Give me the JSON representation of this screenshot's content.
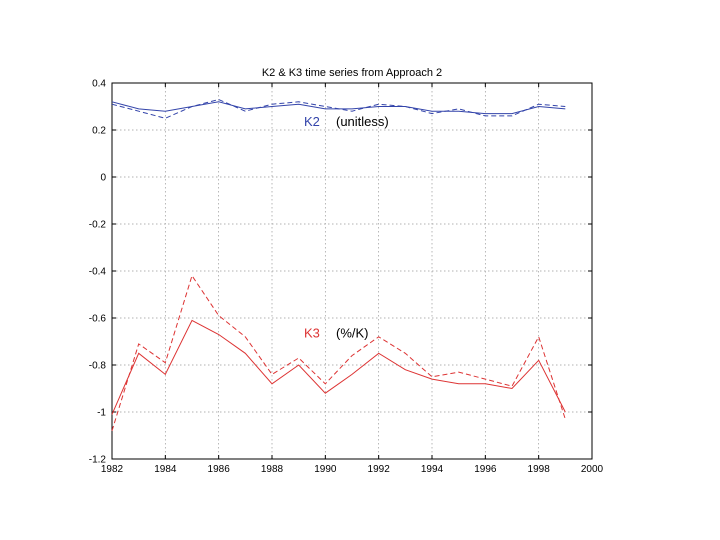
{
  "chart_data": {
    "type": "line",
    "title": "K2 & K3 time series from Approach 2",
    "xlabel": "",
    "ylabel": "",
    "xlim": [
      1982,
      2000
    ],
    "ylim": [
      -1.2,
      0.4
    ],
    "grid": true,
    "x_ticks": [
      1982,
      1984,
      1986,
      1988,
      1990,
      1992,
      1994,
      1996,
      1998,
      2000
    ],
    "y_ticks": [
      0.4,
      0.2,
      0,
      -0.2,
      -0.4,
      -0.6,
      -0.8,
      -1,
      -1.2
    ],
    "x_tick_labels": [
      "1982",
      "1984",
      "1986",
      "1988",
      "1990",
      "1992",
      "1994",
      "1996",
      "1998",
      "2000"
    ],
    "y_tick_labels": [
      "0.4",
      "0.2",
      "0",
      "-0.2",
      "-0.4",
      "-0.6",
      "-0.8",
      "-1",
      "-1.2"
    ],
    "x": [
      1982,
      1983,
      1984,
      1985,
      1986,
      1987,
      1988,
      1989,
      1990,
      1991,
      1992,
      1993,
      1994,
      1995,
      1996,
      1997,
      1998,
      1999
    ],
    "series": [
      {
        "color": "#3344aa",
        "dash": "solid",
        "values": [
          0.32,
          0.29,
          0.28,
          0.3,
          0.32,
          0.29,
          0.3,
          0.31,
          0.29,
          0.29,
          0.3,
          0.3,
          0.28,
          0.28,
          0.27,
          0.27,
          0.3,
          0.29
        ]
      },
      {
        "color": "#3344aa",
        "dash": "dashed",
        "values": [
          0.31,
          0.28,
          0.25,
          0.3,
          0.33,
          0.28,
          0.31,
          0.32,
          0.3,
          0.28,
          0.31,
          0.3,
          0.27,
          0.29,
          0.26,
          0.26,
          0.31,
          0.3
        ]
      },
      {
        "color": "#dd3333",
        "dash": "solid",
        "values": [
          -1.01,
          -0.75,
          -0.84,
          -0.61,
          -0.67,
          -0.75,
          -0.88,
          -0.8,
          -0.92,
          -0.84,
          -0.75,
          -0.82,
          -0.86,
          -0.88,
          -0.88,
          -0.9,
          -0.78,
          -1.0
        ]
      },
      {
        "color": "#dd3333",
        "dash": "dashed",
        "values": [
          -1.08,
          -0.71,
          -0.79,
          -0.42,
          -0.59,
          -0.68,
          -0.84,
          -0.77,
          -0.88,
          -0.76,
          -0.68,
          -0.75,
          -0.85,
          -0.83,
          -0.86,
          -0.89,
          -0.68,
          -1.03
        ]
      }
    ],
    "annotations": [
      {
        "label": "K2",
        "color": "#3344aa",
        "x": 1989.2,
        "y": 0.235
      },
      {
        "label": "(unitless)",
        "color": "#000000",
        "x": 1990.4,
        "y": 0.235
      },
      {
        "label": "K3",
        "color": "#dd3333",
        "x": 1989.2,
        "y": -0.665
      },
      {
        "label": "(%/K)",
        "color": "#000000",
        "x": 1990.4,
        "y": -0.665
      }
    ]
  }
}
